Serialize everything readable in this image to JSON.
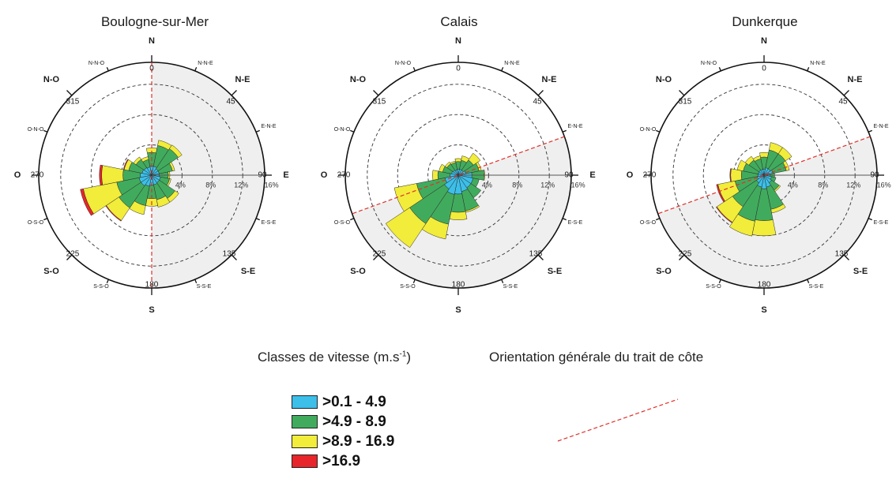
{
  "chart_data": [
    {
      "type": "polar-stacked-bar",
      "title": "Boulogne-sur-Mer",
      "rings": [
        "4%",
        "8%",
        "12%",
        "16%"
      ],
      "coast_orientation_deg": 0,
      "shaded_sector_deg": [
        0,
        90,
        90,
        180
      ],
      "shaded_sector_note": "two quadrants: N→E and E→S",
      "directions_deg": [
        0,
        22.5,
        45,
        67.5,
        90,
        112.5,
        135,
        157.5,
        180,
        202.5,
        225,
        247.5,
        270,
        292.5,
        315,
        337.5
      ],
      "series": [
        {
          "name": ">0.1 - 4.9",
          "values": [
            1.2,
            1.2,
            1.0,
            1.0,
            1.0,
            1.2,
            1.2,
            1.3,
            1.3,
            1.5,
            1.7,
            1.7,
            1.5,
            1.3,
            1.2,
            1.1
          ]
        },
        {
          "name": ">4.9 - 8.9",
          "values": [
            1.8,
            2.8,
            3.2,
            1.8,
            1.2,
            1.2,
            2.5,
            2.0,
            1.8,
            2.6,
            3.5,
            3.0,
            2.3,
            1.8,
            1.3,
            1.0
          ]
        },
        {
          "name": ">8.9 - 16.9",
          "values": [
            0.6,
            0.7,
            0.6,
            0.3,
            0.2,
            0.2,
            0.6,
            1.0,
            1.0,
            1.2,
            2.0,
            4.5,
            2.8,
            0.6,
            0.4,
            0.4
          ]
        },
        {
          "name": ">16.9",
          "values": [
            0,
            0,
            0,
            0,
            0,
            0,
            0,
            0,
            0,
            0,
            0.1,
            0.4,
            0.3,
            0.1,
            0,
            0
          ]
        }
      ]
    },
    {
      "type": "polar-stacked-bar",
      "title": "Calais",
      "rings": [
        "4%",
        "8%",
        "12%",
        "16%"
      ],
      "coast_orientation_deg": 70,
      "shaded_sector_deg": [
        70,
        250
      ],
      "directions_deg": [
        0,
        22.5,
        45,
        67.5,
        90,
        112.5,
        135,
        157.5,
        180,
        202.5,
        225,
        247.5,
        270,
        292.5,
        315,
        337.5
      ],
      "series": [
        {
          "name": ">0.1 - 4.9",
          "values": [
            0.8,
            0.8,
            0.8,
            1.0,
            1.8,
            2.0,
            2.0,
            2.2,
            2.5,
            2.6,
            2.2,
            1.8,
            1.1,
            0.9,
            0.8,
            0.7
          ]
        },
        {
          "name": ">4.9 - 8.9",
          "values": [
            1.0,
            1.2,
            1.6,
            1.8,
            1.6,
            0.8,
            1.6,
            2.6,
            2.4,
            4.0,
            5.5,
            3.8,
            1.6,
            1.2,
            1.0,
            1.0
          ]
        },
        {
          "name": ">8.9 - 16.9",
          "values": [
            0.4,
            0.6,
            1.1,
            0.3,
            0.1,
            0,
            0,
            0.2,
            1.0,
            2.0,
            3.8,
            3.0,
            0.7,
            0.5,
            0.3,
            0.2
          ]
        },
        {
          "name": ">16.9",
          "values": [
            0,
            0,
            0,
            0,
            0,
            0,
            0,
            0,
            0,
            0,
            0,
            0,
            0,
            0,
            0,
            0
          ]
        }
      ]
    },
    {
      "type": "polar-stacked-bar",
      "title": "Dunkerque",
      "rings": [
        "4%",
        "8%",
        "12%",
        "16%"
      ],
      "coast_orientation_deg": 70,
      "shaded_sector_deg": [
        70,
        250
      ],
      "directions_deg": [
        0,
        22.5,
        45,
        67.5,
        90,
        112.5,
        135,
        157.5,
        180,
        202.5,
        225,
        247.5,
        270,
        292.5,
        315,
        337.5
      ],
      "series": [
        {
          "name": ">0.1 - 4.9",
          "values": [
            0.8,
            1.0,
            1.0,
            1.2,
            0.8,
            1.0,
            1.2,
            1.6,
            1.8,
            1.6,
            1.2,
            0.9,
            0.8,
            0.8,
            0.8,
            0.8
          ]
        },
        {
          "name": ">4.9 - 8.9",
          "values": [
            1.6,
            2.4,
            2.4,
            1.8,
            0.6,
            0.6,
            1.2,
            3.0,
            4.2,
            4.6,
            3.8,
            3.0,
            2.2,
            2.0,
            1.6,
            1.4
          ]
        },
        {
          "name": ">8.9 - 16.9",
          "values": [
            0.6,
            1.0,
            1.0,
            0.4,
            0,
            0,
            0.2,
            0.5,
            2.0,
            2.0,
            2.5,
            2.3,
            1.4,
            0.8,
            0.6,
            0.4
          ]
        },
        {
          "name": ">16.9",
          "values": [
            0,
            0,
            0,
            0,
            0,
            0,
            0,
            0,
            0,
            0,
            0.1,
            0.2,
            0.1,
            0,
            0,
            0
          ]
        }
      ]
    }
  ],
  "compass_labels": {
    "N": "N",
    "S": "S",
    "E": "E",
    "O": "O",
    "NE": "N-E",
    "NO": "N-O",
    "SE": "S-E",
    "SO": "S-O",
    "NNE": "N-N-E",
    "ENE": "E-N-E",
    "ESE": "E-S-E",
    "SSE": "S-S-E",
    "SSO": "S-S-O",
    "OSO": "O-S-O",
    "ONO": "O-N-O",
    "NNO": "N-N-O"
  },
  "degree_labels": [
    "0",
    "45",
    "90",
    "135",
    "180",
    "225",
    "270",
    "315"
  ],
  "legend": {
    "speed_title": "Classes de vitesse (m.s",
    "speed_title_sup": "-1",
    "speed_title_end": ")",
    "coast_title": "Orientation générale du trait de côte",
    "classes": [
      {
        "label": ">0.1 - 4.9",
        "color": "#3cbfe9"
      },
      {
        "label": ">4.9 - 8.9",
        "color": "#41ab5d"
      },
      {
        "label": ">8.9 - 16.9",
        "color": "#f2ec3a"
      },
      {
        "label": ">16.9",
        "color": "#e8252a"
      }
    ]
  },
  "colors": {
    "class1": "#3cbfe9",
    "class2": "#41ab5d",
    "class3": "#f2ec3a",
    "class4": "#e8252a",
    "coast_line": "#e0302a",
    "shade": "#efefef"
  }
}
